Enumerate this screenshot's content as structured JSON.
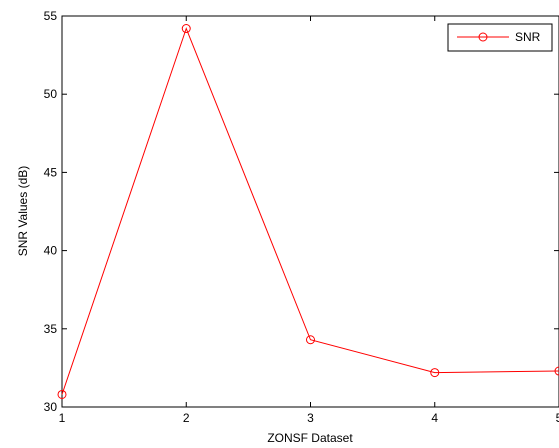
{
  "chart_data": {
    "type": "line",
    "xlabel": "ZONSF Dataset",
    "ylabel": "SNR Values  (dB)",
    "xlim": [
      1,
      5
    ],
    "ylim": [
      30,
      55
    ],
    "xticks": [
      1,
      2,
      3,
      4,
      5
    ],
    "yticks": [
      30,
      35,
      40,
      45,
      50,
      55
    ],
    "grid": false,
    "legend_position": "top-right",
    "series": [
      {
        "name": "SNR",
        "color": "#ff0000",
        "marker": "circle",
        "x": [
          1,
          2,
          3,
          4,
          5
        ],
        "y": [
          30.8,
          54.2,
          34.3,
          32.2,
          32.3
        ]
      }
    ]
  }
}
